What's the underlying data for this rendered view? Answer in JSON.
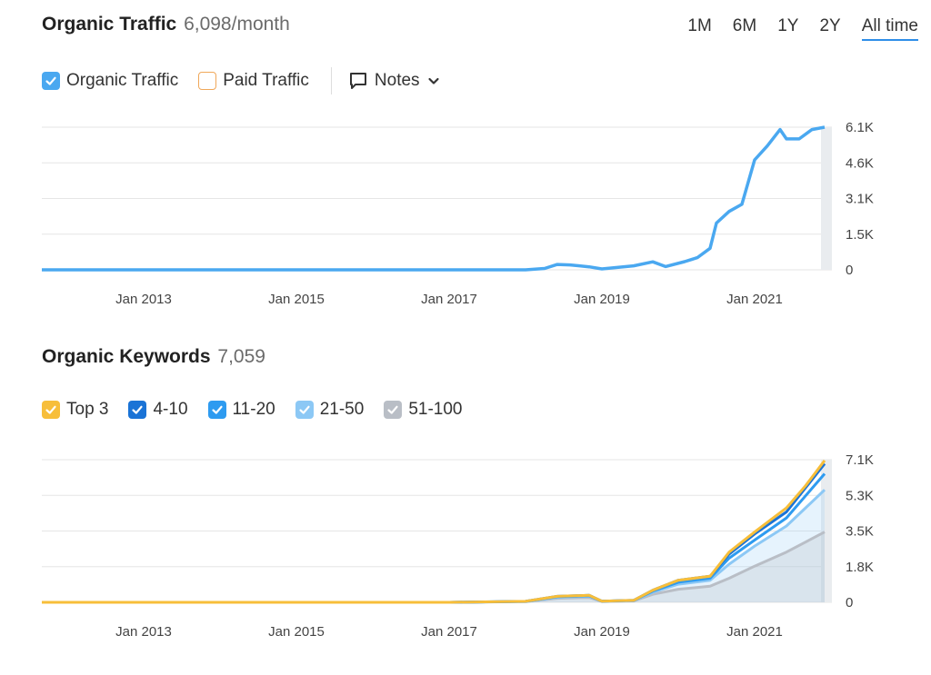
{
  "traffic": {
    "title": "Organic Traffic",
    "metric": "6,098/month",
    "legend": {
      "organic": "Organic Traffic",
      "paid": "Paid Traffic",
      "notes": "Notes"
    }
  },
  "ranges": [
    "1M",
    "6M",
    "1Y",
    "2Y",
    "All time"
  ],
  "active_range": "All time",
  "keywords": {
    "title": "Organic Keywords",
    "metric": "7,059",
    "legend": [
      "Top 3",
      "4-10",
      "11-20",
      "21-50",
      "51-100"
    ]
  },
  "colors": {
    "organic": "#4aa8f0",
    "paid": "#f0a85a",
    "top3": "#f7be3a",
    "k4_10": "#1a73d6",
    "k11_20": "#2e9bf0",
    "k21_50": "#8cc8f5",
    "k51_100": "#b9bec6"
  },
  "chart_data": [
    {
      "type": "line",
      "title": "Organic Traffic",
      "x_ticks": [
        "Jan 2013",
        "Jan 2015",
        "Jan 2017",
        "Jan 2019",
        "Jan 2021"
      ],
      "y_ticks": [
        "0",
        "1.5K",
        "3.1K",
        "4.6K",
        "6.1K"
      ],
      "ylim": [
        0,
        6100
      ],
      "grid": true,
      "series": [
        {
          "name": "Organic Traffic",
          "x": [
            "2011-09",
            "2013-01",
            "2015-01",
            "2017-01",
            "2018-01",
            "2018-04",
            "2018-06",
            "2018-08",
            "2018-11",
            "2019-01",
            "2019-06",
            "2019-09",
            "2019-11",
            "2020-02",
            "2020-04",
            "2020-06",
            "2020-07",
            "2020-09",
            "2020-11",
            "2021-01",
            "2021-03",
            "2021-05",
            "2021-06",
            "2021-08",
            "2021-10",
            "2021-12"
          ],
          "values": [
            0,
            0,
            0,
            0,
            0,
            60,
            230,
            210,
            130,
            40,
            170,
            340,
            140,
            350,
            520,
            920,
            2000,
            2500,
            2800,
            4700,
            5300,
            6000,
            5600,
            5600,
            6000,
            6100
          ]
        }
      ]
    },
    {
      "type": "area",
      "title": "Organic Keywords",
      "x_ticks": [
        "Jan 2013",
        "Jan 2015",
        "Jan 2017",
        "Jan 2019",
        "Jan 2021"
      ],
      "y_ticks": [
        "0",
        "1.8K",
        "3.5K",
        "5.3K",
        "7.1K"
      ],
      "ylim": [
        0,
        7100
      ],
      "grid": true,
      "x": [
        "2011-09",
        "2017-01",
        "2018-01",
        "2018-06",
        "2018-11",
        "2019-01",
        "2019-06",
        "2019-09",
        "2020-01",
        "2020-06",
        "2020-09",
        "2021-01",
        "2021-06",
        "2021-09",
        "2021-12"
      ],
      "series": [
        {
          "name": "Top 3",
          "values": [
            0,
            0,
            50,
            300,
            350,
            60,
            100,
            600,
            1100,
            1300,
            2500,
            3500,
            4700,
            5800,
            7059
          ]
        },
        {
          "name": "4-10",
          "values": [
            0,
            0,
            50,
            300,
            350,
            60,
            100,
            600,
            1100,
            1300,
            2400,
            3400,
            4500,
            5700,
            6900
          ]
        },
        {
          "name": "11-20",
          "values": [
            0,
            0,
            45,
            280,
            330,
            55,
            95,
            560,
            1000,
            1200,
            2200,
            3100,
            4200,
            5300,
            6400
          ]
        },
        {
          "name": "21-50",
          "values": [
            0,
            0,
            40,
            250,
            300,
            50,
            90,
            500,
            900,
            1100,
            1900,
            2800,
            3800,
            4700,
            5600
          ]
        },
        {
          "name": "51-100",
          "values": [
            0,
            0,
            30,
            200,
            240,
            40,
            70,
            400,
            650,
            800,
            1200,
            1800,
            2500,
            3000,
            3500
          ]
        }
      ]
    }
  ]
}
